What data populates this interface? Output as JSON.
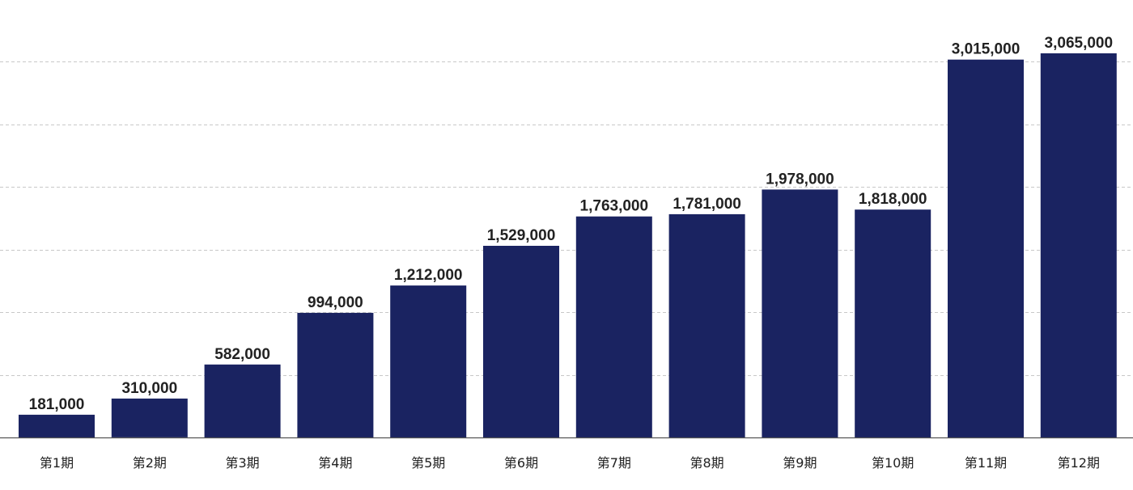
{
  "chart_data": {
    "type": "bar",
    "title": "",
    "xlabel": "",
    "ylabel": "",
    "categories": [
      "第1期",
      "第2期",
      "第3期",
      "第4期",
      "第5期",
      "第6期",
      "第7期",
      "第8期",
      "第9期",
      "第10期",
      "第11期",
      "第12期"
    ],
    "values": [
      181000,
      310000,
      582000,
      994000,
      1212000,
      1529000,
      1763000,
      1781000,
      1978000,
      1818000,
      3015000,
      3065000
    ],
    "value_labels": [
      "181,000",
      "310,000",
      "582,000",
      "994,000",
      "1,212,000",
      "1,529,000",
      "1,763,000",
      "1,781,000",
      "1,978,000",
      "1,818,000",
      "3,015,000",
      "3,065,000"
    ],
    "ylim": [
      0,
      3000000
    ],
    "grid_step": 500000,
    "grid": true,
    "legend": "none",
    "bar_color": "#1a2361"
  }
}
